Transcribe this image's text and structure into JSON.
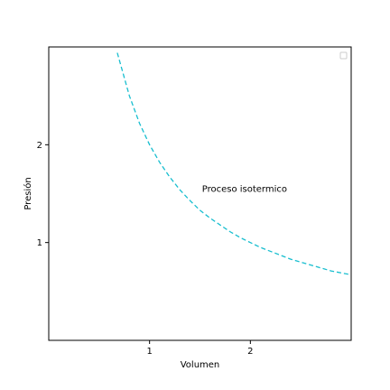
{
  "chart_data": {
    "type": "line",
    "title": "",
    "xlabel": "Volumen",
    "ylabel": "Presión",
    "xlim": [
      0.0,
      3.0
    ],
    "ylim": [
      0.0,
      3.0
    ],
    "x_ticks": [
      1,
      2
    ],
    "y_ticks": [
      1,
      2
    ],
    "x_tick_labels": [
      "1",
      "2"
    ],
    "y_tick_labels": [
      "1",
      "2"
    ],
    "grid": false,
    "legend": "top-right",
    "annotation": {
      "text": "Proceso isotermico",
      "x": 1.52,
      "y": 1.55
    },
    "series": [
      {
        "color": "#17becf",
        "style": "dashed",
        "x": [
          0.68,
          0.8,
          0.9,
          1.0,
          1.1,
          1.2,
          1.3,
          1.4,
          1.5,
          1.6,
          1.7,
          1.8,
          1.9,
          2.0,
          2.1,
          2.2,
          2.3,
          2.4,
          2.5,
          2.6,
          2.7,
          2.8,
          2.9,
          3.0
        ],
        "y": [
          2.94,
          2.5,
          2.22,
          2.0,
          1.82,
          1.67,
          1.54,
          1.43,
          1.33,
          1.25,
          1.18,
          1.11,
          1.05,
          1.0,
          0.95,
          0.91,
          0.87,
          0.83,
          0.8,
          0.77,
          0.74,
          0.71,
          0.69,
          0.67
        ]
      }
    ]
  }
}
